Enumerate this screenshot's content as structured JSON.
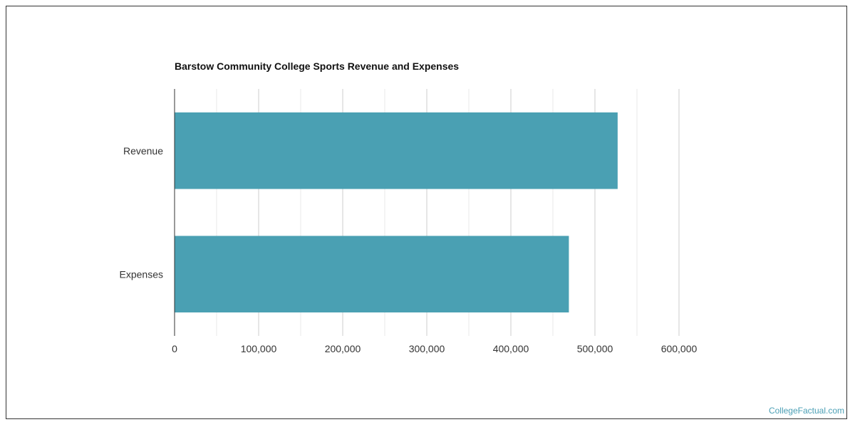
{
  "chart_data": {
    "type": "bar",
    "orientation": "horizontal",
    "title": "Barstow Community College Sports Revenue and Expenses",
    "categories": [
      "Revenue",
      "Expenses"
    ],
    "values": [
      527000,
      469000
    ],
    "xlim": [
      0,
      600000
    ],
    "xticks": [
      "0",
      "100,000",
      "200,000",
      "300,000",
      "400,000",
      "500,000",
      "600,000"
    ],
    "grid": true,
    "bar_color": "#4aa0b3"
  },
  "credit": "CollegeFactual.com"
}
